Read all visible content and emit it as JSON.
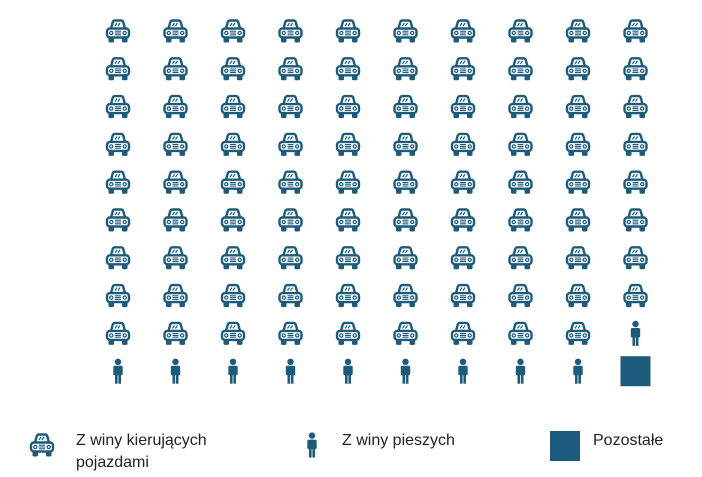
{
  "chart_data": {
    "type": "pictogram",
    "color": "#1b5b7c",
    "series": [
      {
        "name": "Z winy kierujących pojazdami",
        "value": 89,
        "icon": "car"
      },
      {
        "name": "Z winy pieszych",
        "value": 10,
        "icon": "person"
      },
      {
        "name": "Pozostałe",
        "value": 1,
        "icon": "square"
      }
    ]
  }
}
